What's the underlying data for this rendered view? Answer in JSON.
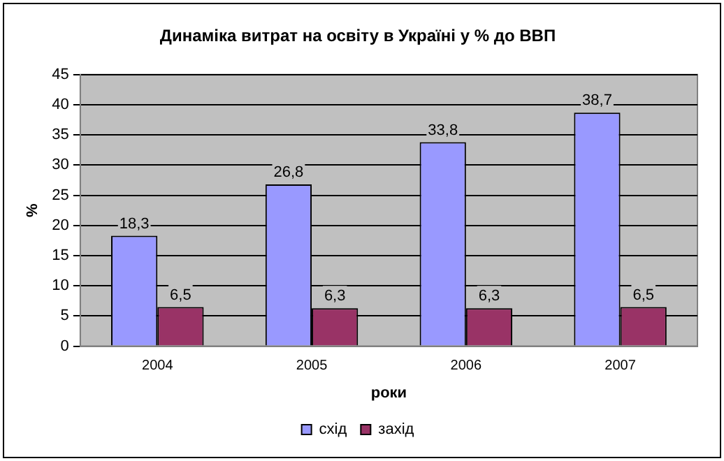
{
  "chart_data": {
    "type": "bar",
    "title": "Динаміка витрат на освіту в Україні у % до ВВП",
    "xlabel": "роки",
    "ylabel": "%",
    "categories": [
      "2004",
      "2005",
      "2006",
      "2007"
    ],
    "series": [
      {
        "name": "схід",
        "color": "#9999ff",
        "values": [
          18.3,
          26.8,
          33.8,
          38.7
        ],
        "value_labels": [
          "18,3",
          "26,8",
          "33,8",
          "38,7"
        ]
      },
      {
        "name": "захід",
        "color": "#993366",
        "values": [
          6.5,
          6.3,
          6.3,
          6.5
        ],
        "value_labels": [
          "6,5",
          "6,3",
          "6,3",
          "6,5"
        ]
      }
    ],
    "ylim": [
      0,
      45
    ],
    "yticks": [
      0,
      5,
      10,
      15,
      20,
      25,
      30,
      35,
      40,
      45
    ],
    "grid": "y",
    "legend": "bottom"
  }
}
